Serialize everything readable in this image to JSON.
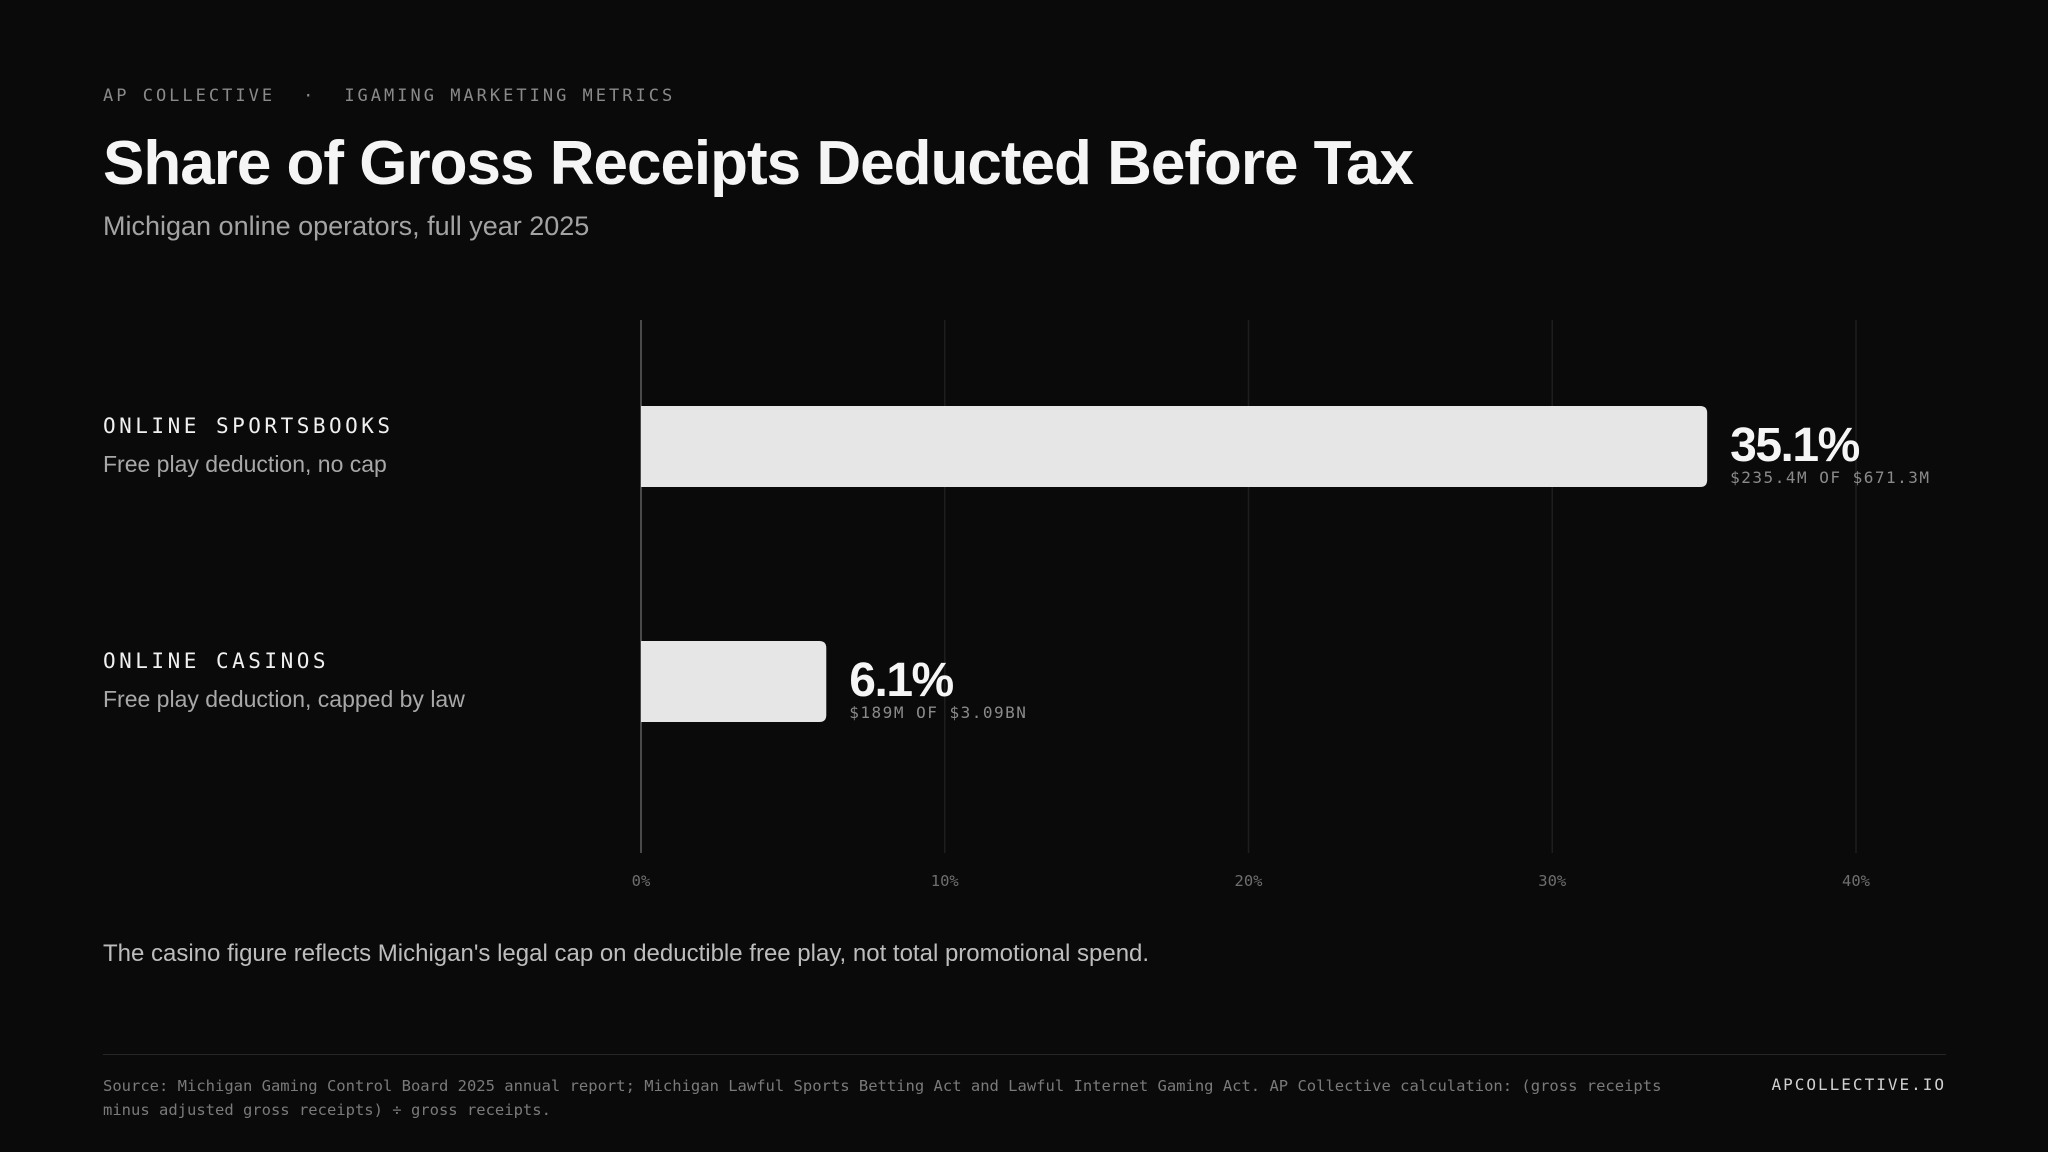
{
  "header": {
    "brand": "AP COLLECTIVE",
    "separator": "·",
    "section": "IGAMING MARKETING METRICS",
    "title": "Share of Gross Receipts Deducted Before Tax",
    "subtitle": "Michigan online operators, full year 2025"
  },
  "chart_data": {
    "type": "bar",
    "orientation": "horizontal",
    "title": "Share of Gross Receipts Deducted Before Tax",
    "subtitle": "Michigan online operators, full year 2025",
    "categories": [
      "ONLINE SPORTSBOOKS",
      "ONLINE CASINOS"
    ],
    "descriptions": [
      "Free play deduction, no cap",
      "Free play deduction, capped by law"
    ],
    "values": [
      35.1,
      6.1
    ],
    "value_labels": [
      "35.1%",
      "6.1%"
    ],
    "detail_labels": [
      "$235.4M OF $671.3M",
      "$189M OF $3.09BN"
    ],
    "xlim": [
      0,
      40
    ],
    "xticks": [
      0,
      10,
      20,
      30,
      40
    ],
    "xtick_labels": [
      "0%",
      "10%",
      "20%",
      "30%",
      "40%"
    ],
    "grid": true,
    "colors": {
      "bar": "#e6e6e6",
      "background": "#0a0a0a",
      "grid": "#1e1e1e",
      "axis": "#4a4a4a"
    }
  },
  "note": "The casino figure reflects Michigan's legal cap on deductible free play, not total promotional spend.",
  "footer": {
    "source": "Source: Michigan Gaming Control Board 2025 annual report; Michigan Lawful Sports Betting Act and Lawful Internet Gaming Act. AP Collective calculation: (gross receipts minus adjusted gross receipts) ÷ gross receipts.",
    "site": "APCOLLECTIVE.IO"
  }
}
